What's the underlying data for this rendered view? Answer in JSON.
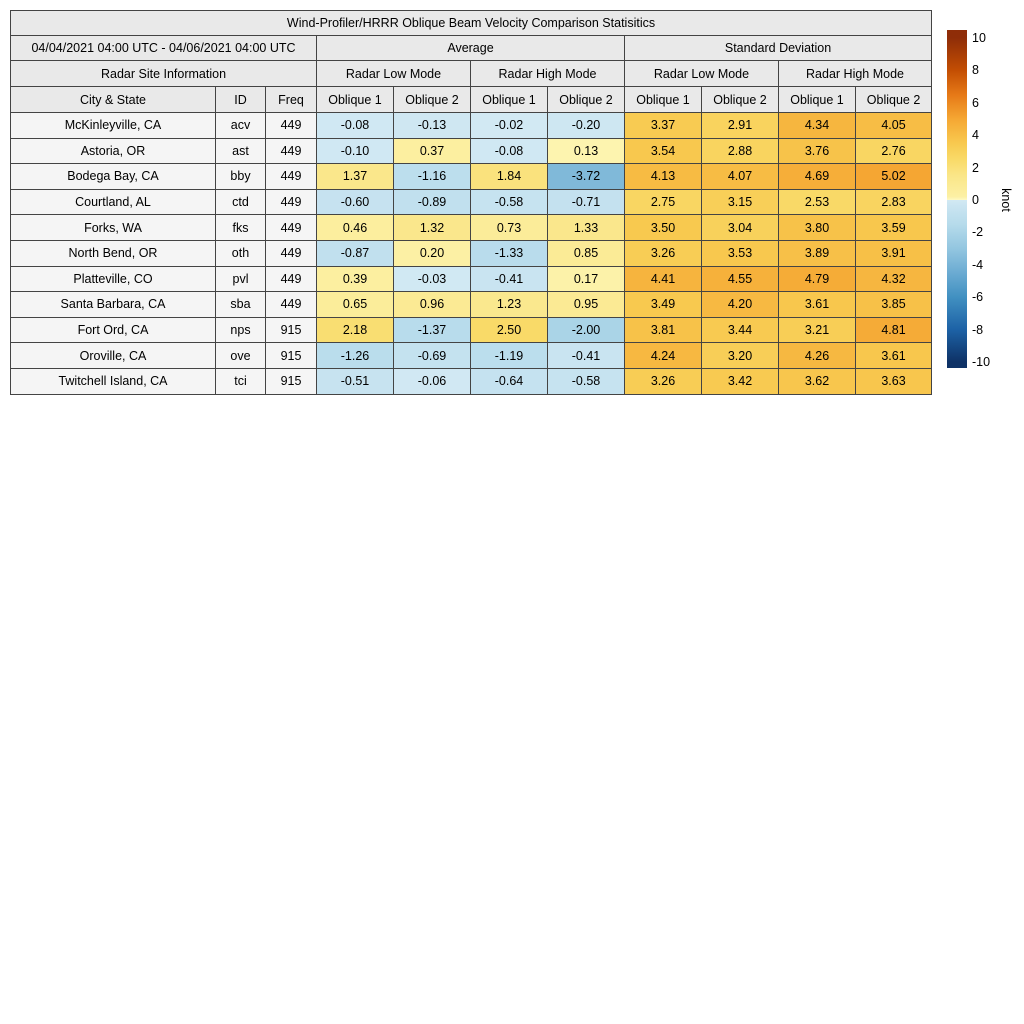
{
  "title": "Wind-Profiler/HRRR Oblique Beam Velocity Comparison Statisitics",
  "header": {
    "date_range": "04/04/2021 04:00 UTC - 04/06/2021 04:00 UTC",
    "average": "Average",
    "standard_deviation": "Standard Deviation",
    "site_info": "Radar Site Information",
    "low_mode": "Radar Low Mode",
    "high_mode": "Radar High Mode",
    "city": "City & State",
    "id": "ID",
    "freq": "Freq",
    "oblique1": "Oblique 1",
    "oblique2": "Oblique 2"
  },
  "colorbar": {
    "unit": "knot",
    "ticks": [
      10,
      8,
      6,
      4,
      2,
      0,
      -2,
      -4,
      -6,
      -8,
      -10
    ],
    "range": [
      -10,
      10
    ],
    "positive_stops": [
      [
        0.0,
        "#fefac2"
      ],
      [
        0.02,
        "#fcf0a4"
      ],
      [
        0.15,
        "#fae688"
      ],
      [
        0.25,
        "#f9da68"
      ],
      [
        0.35,
        "#f8c94f"
      ],
      [
        0.5,
        "#f5a733"
      ],
      [
        0.65,
        "#e67917"
      ],
      [
        0.8,
        "#c34e03"
      ],
      [
        1.0,
        "#8f2d08"
      ]
    ],
    "negative_stops": [
      [
        0.0,
        "#d2e9f3"
      ],
      [
        0.04,
        "#c9e4f1"
      ],
      [
        0.15,
        "#b6dbeb"
      ],
      [
        0.3,
        "#93c6e0"
      ],
      [
        0.45,
        "#6babd2"
      ],
      [
        0.6,
        "#4190c1"
      ],
      [
        0.8,
        "#1d62a6"
      ],
      [
        1.0,
        "#0e3266"
      ]
    ]
  },
  "chart_data": {
    "type": "heatmap",
    "title": "Wind-Profiler/HRRR Oblique Beam Velocity Comparison Statisitics",
    "unit": "knot",
    "color_range": [
      -10,
      10
    ],
    "value_columns": [
      "Avg Low Oblique 1",
      "Avg Low Oblique 2",
      "Avg High Oblique 1",
      "Avg High Oblique 2",
      "Std Low Oblique 1",
      "Std Low Oblique 2",
      "Std High Oblique 1",
      "Std High Oblique 2"
    ],
    "rows": [
      {
        "city": "McKinleyville, CA",
        "id": "acv",
        "freq": "449",
        "values": [
          -0.08,
          -0.13,
          -0.02,
          -0.2,
          3.37,
          2.91,
          4.34,
          4.05
        ]
      },
      {
        "city": "Astoria, OR",
        "id": "ast",
        "freq": "449",
        "values": [
          -0.1,
          0.37,
          -0.08,
          0.13,
          3.54,
          2.88,
          3.76,
          2.76
        ]
      },
      {
        "city": "Bodega Bay, CA",
        "id": "bby",
        "freq": "449",
        "values": [
          1.37,
          -1.16,
          1.84,
          -3.72,
          4.13,
          4.07,
          4.69,
          5.02
        ]
      },
      {
        "city": "Courtland, AL",
        "id": "ctd",
        "freq": "449",
        "values": [
          -0.6,
          -0.89,
          -0.58,
          -0.71,
          2.75,
          3.15,
          2.53,
          2.83
        ]
      },
      {
        "city": "Forks, WA",
        "id": "fks",
        "freq": "449",
        "values": [
          0.46,
          1.32,
          0.73,
          1.33,
          3.5,
          3.04,
          3.8,
          3.59
        ]
      },
      {
        "city": "North Bend, OR",
        "id": "oth",
        "freq": "449",
        "values": [
          -0.87,
          0.2,
          -1.33,
          0.85,
          3.26,
          3.53,
          3.89,
          3.91
        ]
      },
      {
        "city": "Platteville, CO",
        "id": "pvl",
        "freq": "449",
        "values": [
          0.39,
          -0.03,
          -0.41,
          0.17,
          4.41,
          4.55,
          4.79,
          4.32
        ]
      },
      {
        "city": "Santa Barbara, CA",
        "id": "sba",
        "freq": "449",
        "values": [
          0.65,
          0.96,
          1.23,
          0.95,
          3.49,
          4.2,
          3.61,
          3.85
        ]
      },
      {
        "city": "Fort Ord, CA",
        "id": "nps",
        "freq": "915",
        "values": [
          2.18,
          -1.37,
          2.5,
          -2.0,
          3.81,
          3.44,
          3.21,
          4.81
        ]
      },
      {
        "city": "Oroville, CA",
        "id": "ove",
        "freq": "915",
        "values": [
          -1.26,
          -0.69,
          -1.19,
          -0.41,
          4.24,
          3.2,
          4.26,
          3.61
        ]
      },
      {
        "city": "Twitchell Island, CA",
        "id": "tci",
        "freq": "915",
        "values": [
          -0.51,
          -0.06,
          -0.64,
          -0.58,
          3.26,
          3.42,
          3.62,
          3.63
        ]
      }
    ]
  }
}
